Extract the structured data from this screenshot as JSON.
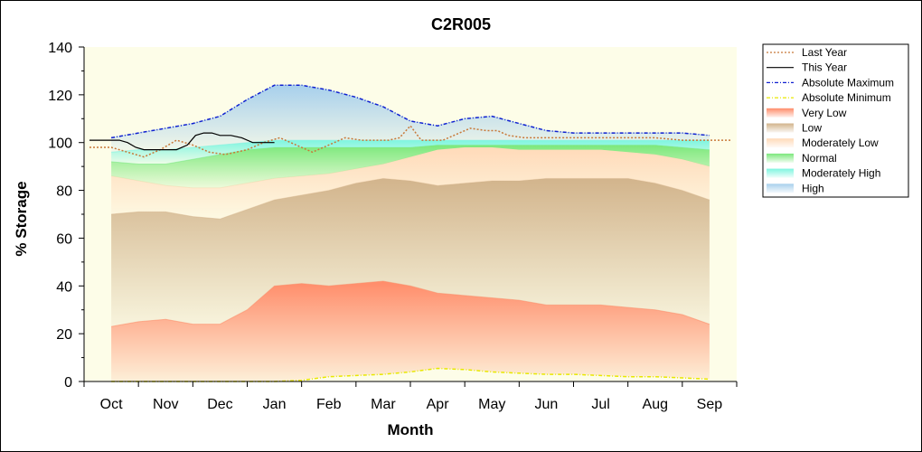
{
  "chart_data": {
    "type": "area",
    "title": "C2R005",
    "xlabel": "Month",
    "ylabel": "% Storage",
    "ylim": [
      0,
      140
    ],
    "yticks": [
      0,
      20,
      40,
      60,
      80,
      100,
      120,
      140
    ],
    "grid": false,
    "legend_position": "right",
    "categories": [
      "Oct",
      "Nov",
      "Dec",
      "Jan",
      "Feb",
      "Mar",
      "Apr",
      "May",
      "Jun",
      "Jul",
      "Aug",
      "Sep"
    ],
    "x_positions": [
      1,
      2,
      3,
      4,
      5,
      6,
      7,
      8,
      9,
      10,
      11,
      12
    ],
    "bands": [
      {
        "name": "Very Low",
        "color": "#ff8c69",
        "x": [
          1,
          1.5,
          2,
          2.5,
          3,
          3.5,
          4,
          4.5,
          5,
          5.5,
          6,
          6.5,
          7,
          7.5,
          8,
          8.5,
          9,
          9.5,
          10,
          10.5,
          11,
          11.5,
          12
        ],
        "lower": [
          0,
          0,
          0,
          0,
          0,
          0,
          0,
          0.5,
          2,
          2.5,
          3,
          4,
          5.5,
          5,
          4,
          3.5,
          3,
          3,
          2.5,
          2,
          2,
          1.5,
          1
        ],
        "upper": [
          23,
          25,
          26,
          24,
          24,
          30,
          40,
          41,
          40,
          41,
          42,
          40,
          37,
          36,
          35,
          34,
          32,
          32,
          32,
          31,
          30,
          28,
          24
        ]
      },
      {
        "name": "Low",
        "color": "#d2b48c",
        "x": [
          1,
          1.5,
          2,
          2.5,
          3,
          3.5,
          4,
          4.5,
          5,
          5.5,
          6,
          6.5,
          7,
          7.5,
          8,
          8.5,
          9,
          9.5,
          10,
          10.5,
          11,
          11.5,
          12
        ],
        "upper": [
          70,
          71,
          71,
          69,
          68,
          72,
          76,
          78,
          80,
          83,
          85,
          84,
          82,
          83,
          84,
          84,
          85,
          85,
          85,
          85,
          83,
          80,
          76
        ]
      },
      {
        "name": "Moderately Low",
        "color": "#ffdab9",
        "x": [
          1,
          1.5,
          2,
          2.5,
          3,
          3.5,
          4,
          4.5,
          5,
          5.5,
          6,
          6.5,
          7,
          7.5,
          8,
          8.5,
          9,
          9.5,
          10,
          10.5,
          11,
          11.5,
          12
        ],
        "upper": [
          86,
          84,
          82,
          81,
          81,
          83,
          85,
          86,
          87,
          89,
          91,
          94,
          97,
          98,
          98,
          97,
          97,
          97,
          97,
          96,
          95,
          93,
          90
        ]
      },
      {
        "name": "Normal",
        "color": "#7ce87c",
        "x": [
          1,
          1.5,
          2,
          2.5,
          3,
          3.5,
          4,
          4.5,
          5,
          5.5,
          6,
          6.5,
          7,
          7.5,
          8,
          8.5,
          9,
          9.5,
          10,
          10.5,
          11,
          11.5,
          12
        ],
        "upper": [
          92,
          91,
          91,
          93,
          95,
          97,
          98,
          98,
          98,
          98,
          98,
          98,
          99,
          99,
          99,
          99,
          99,
          99,
          99,
          99,
          99,
          98,
          97
        ]
      },
      {
        "name": "Moderately High",
        "color": "#7ff5e0",
        "x": [
          1,
          1.5,
          2,
          2.5,
          3,
          3.5,
          4,
          4.5,
          5,
          5.5,
          6,
          6.5,
          7,
          7.5,
          8,
          8.5,
          9,
          9.5,
          10,
          10.5,
          11,
          11.5,
          12
        ],
        "upper": [
          96,
          97,
          97,
          98,
          99,
          100,
          101,
          101,
          101,
          101,
          101,
          101,
          101,
          101,
          101,
          101,
          101,
          101,
          101,
          101,
          101,
          101,
          101
        ]
      },
      {
        "name": "High",
        "color": "#a8d0ec",
        "x": [
          1,
          1.5,
          2,
          2.5,
          3,
          3.5,
          4,
          4.5,
          5,
          5.5,
          6,
          6.5,
          7,
          7.5,
          8,
          8.5,
          9,
          9.5,
          10,
          10.5,
          11,
          11.5,
          12
        ],
        "upper": [
          102,
          104,
          106,
          108,
          111,
          118,
          124,
          124,
          122,
          119,
          115,
          109,
          107,
          110,
          111,
          108,
          105,
          104,
          104,
          104,
          104,
          104,
          103
        ]
      }
    ],
    "series": [
      {
        "name": "Last Year",
        "color": "#c87838",
        "style": "dotted",
        "x": [
          0.6,
          1,
          1.3,
          1.6,
          1.9,
          2.2,
          2.5,
          2.8,
          3.1,
          3.5,
          3.8,
          4.1,
          4.4,
          4.7,
          5,
          5.3,
          5.6,
          5.9,
          6.1,
          6.3,
          6.5,
          6.7,
          6.9,
          7.1,
          7.3,
          7.6,
          7.9,
          8.1,
          8.3,
          8.6,
          8.9,
          9.2,
          9.6,
          10,
          10.5,
          11,
          11.5,
          12,
          12.4
        ],
        "y": [
          98,
          98,
          96,
          94,
          97,
          101,
          99,
          96,
          95,
          97,
          100,
          102,
          99,
          96,
          99,
          102,
          101,
          101,
          101,
          102,
          107,
          101,
          101,
          101,
          103,
          106,
          105,
          105,
          103,
          102,
          102,
          102,
          102,
          102,
          102,
          102,
          101,
          101,
          101
        ]
      },
      {
        "name": "This Year",
        "color": "#000000",
        "style": "solid",
        "x": [
          0.6,
          0.8,
          1,
          1.15,
          1.3,
          1.45,
          1.6,
          1.8,
          2,
          2.2,
          2.4,
          2.55,
          2.7,
          2.85,
          3,
          3.2,
          3.4,
          3.6,
          3.8,
          4
        ],
        "y": [
          101,
          101,
          101,
          101,
          100,
          98,
          97,
          97,
          97,
          97,
          99,
          103,
          104,
          104,
          103,
          103,
          102,
          100,
          100,
          100
        ]
      },
      {
        "name": "Absolute Maximum",
        "color": "#1020d0",
        "style": "dashdot",
        "x": [
          1,
          1.5,
          2,
          2.5,
          3,
          3.5,
          4,
          4.5,
          5,
          5.5,
          6,
          6.5,
          7,
          7.5,
          8,
          8.5,
          9,
          9.5,
          10,
          10.5,
          11,
          11.5,
          12
        ],
        "y": [
          102,
          104,
          106,
          108,
          111,
          118,
          124,
          124,
          122,
          119,
          115,
          109,
          107,
          110,
          111,
          108,
          105,
          104,
          104,
          104,
          104,
          104,
          103
        ]
      },
      {
        "name": "Absolute Minimum",
        "color": "#e8e800",
        "style": "dashdot",
        "x": [
          1,
          1.5,
          2,
          2.5,
          3,
          3.5,
          4,
          4.5,
          5,
          5.5,
          6,
          6.5,
          7,
          7.5,
          8,
          8.5,
          9,
          9.5,
          10,
          10.5,
          11,
          11.5,
          12
        ],
        "y": [
          0,
          0,
          0,
          0,
          0,
          0,
          0,
          0.5,
          2,
          2.5,
          3,
          4,
          5.5,
          5,
          4,
          3.5,
          3,
          3,
          2.5,
          2,
          2,
          1.5,
          1
        ]
      }
    ],
    "legend": [
      {
        "label": "Last Year",
        "kind": "line",
        "color": "#c87838",
        "style": "dotted"
      },
      {
        "label": "This Year",
        "kind": "line",
        "color": "#000000",
        "style": "solid"
      },
      {
        "label": "Absolute Maximum",
        "kind": "line",
        "color": "#1020d0",
        "style": "dashdot"
      },
      {
        "label": "Absolute Minimum",
        "kind": "line",
        "color": "#e8e800",
        "style": "dashdot"
      },
      {
        "label": "Very Low",
        "kind": "area",
        "color": "#ff8c69"
      },
      {
        "label": "Low",
        "kind": "area",
        "color": "#d2b48c"
      },
      {
        "label": "Moderately Low",
        "kind": "area",
        "color": "#ffdab9"
      },
      {
        "label": "Normal",
        "kind": "area",
        "color": "#7ce87c"
      },
      {
        "label": "Moderately High",
        "kind": "area",
        "color": "#7ff5e0"
      },
      {
        "label": "High",
        "kind": "area",
        "color": "#a8d0ec"
      }
    ],
    "colors": {
      "plot_background": "#fdfde8",
      "frame": "#000000"
    }
  }
}
